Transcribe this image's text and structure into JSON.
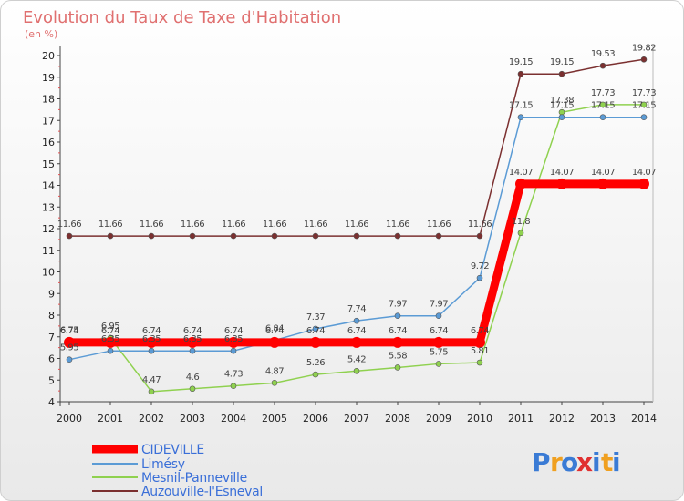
{
  "chart_data": {
    "type": "line",
    "title": "Evolution du Taux de Taxe d'Habitation",
    "subtitle": "(en %)",
    "x": [
      "2000",
      "2001",
      "2002",
      "2003",
      "2004",
      "2005",
      "2006",
      "2007",
      "2008",
      "2009",
      "2010",
      "2011",
      "2012",
      "2013",
      "2014"
    ],
    "ylim": [
      4,
      20
    ],
    "yticks": [
      4,
      5,
      6,
      7,
      8,
      9,
      10,
      11,
      12,
      13,
      14,
      15,
      16,
      17,
      18,
      19,
      20
    ],
    "grid": false,
    "legend_position": "bottom-left",
    "series": [
      {
        "name": "CIDEVILLE",
        "color": "#ff0000",
        "values": [
          6.74,
          6.74,
          6.74,
          6.74,
          6.74,
          6.74,
          6.74,
          6.74,
          6.74,
          6.74,
          6.74,
          14.07,
          14.07,
          14.07,
          14.07
        ],
        "labels": [
          "6.74",
          "6.74",
          "6.74",
          "6.74",
          "6.74",
          "6.74",
          "6.74",
          "6.74",
          "6.74",
          "6.74",
          "6.74",
          "14.07",
          "14.07",
          "14.07",
          "14.07"
        ]
      },
      {
        "name": "Limésy",
        "color": "#5b9bd5",
        "values": [
          5.95,
          6.35,
          6.35,
          6.35,
          6.35,
          6.84,
          7.37,
          7.74,
          7.97,
          7.97,
          9.72,
          17.15,
          17.15,
          17.15,
          17.15
        ],
        "labels": [
          "5.95",
          "6.35",
          "6.35",
          "6.35",
          "6.35",
          "6.84",
          "7.37",
          "7.74",
          "7.97",
          "7.97",
          "9.72",
          "17.15",
          "17.15",
          "17.15",
          "17.15"
        ]
      },
      {
        "name": "Mesnil-Panneville",
        "color": "#8fd14f",
        "values": [
          6.75,
          6.95,
          4.47,
          4.6,
          4.73,
          4.87,
          5.26,
          5.42,
          5.58,
          5.75,
          5.81,
          11.8,
          17.38,
          17.73,
          17.73
        ],
        "labels": [
          "6.75",
          "6.95",
          "4.47",
          "4.6",
          "4.73",
          "4.87",
          "5.26",
          "5.42",
          "5.58",
          "5.75",
          "5.81",
          "11.8",
          "17.38",
          "17.73",
          "17.73"
        ]
      },
      {
        "name": "Auzouville-l'Esneval",
        "color": "#7b3030",
        "values": [
          11.66,
          11.66,
          11.66,
          11.66,
          11.66,
          11.66,
          11.66,
          11.66,
          11.66,
          11.66,
          11.66,
          19.15,
          19.15,
          19.53,
          19.82
        ],
        "labels": [
          "11.66",
          "11.66",
          "11.66",
          "11.66",
          "11.66",
          "11.66",
          "11.66",
          "11.66",
          "11.66",
          "11.66",
          "11.66",
          "19.15",
          "19.15",
          "19.53",
          "19.82"
        ]
      }
    ]
  },
  "logo": {
    "text": "Proxiti",
    "letters": [
      "P",
      "r",
      "o",
      "x",
      "i",
      "t",
      "i"
    ],
    "colors": [
      "#3a7bd5",
      "#f0a020",
      "#3a7bd5",
      "#e03030",
      "#3a7bd5",
      "#f0a020",
      "#3a7bd5"
    ]
  }
}
